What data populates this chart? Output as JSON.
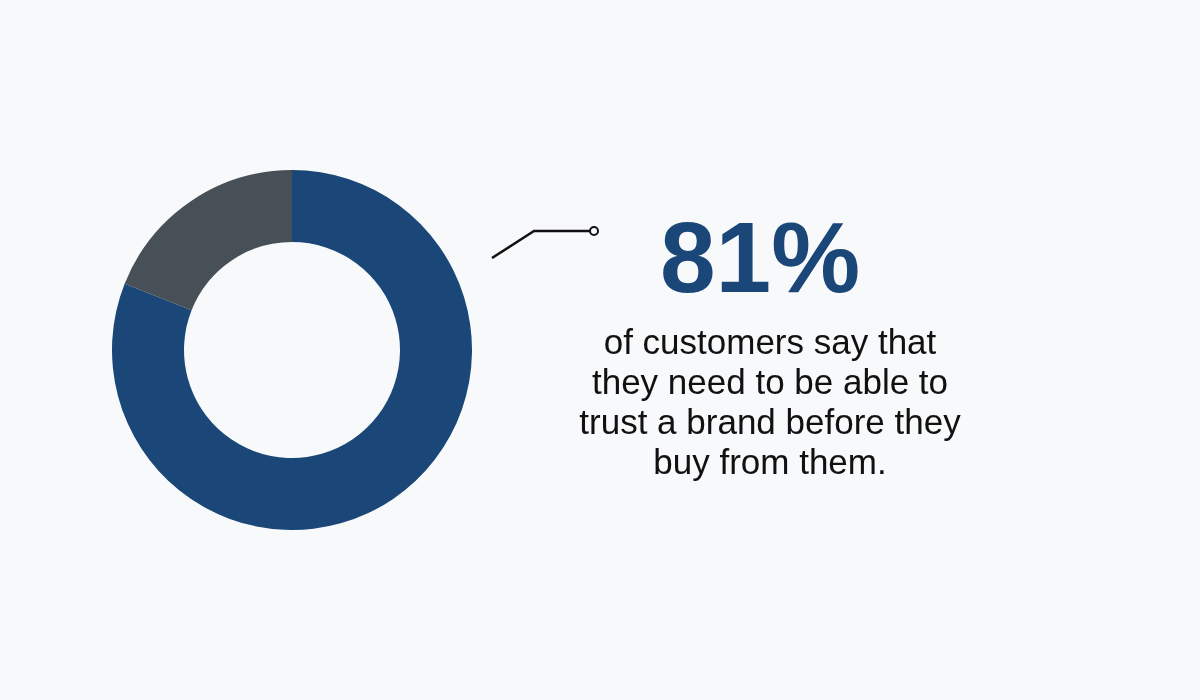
{
  "chart_data": {
    "type": "donut",
    "categories": [
      null,
      null
    ],
    "values": [
      81,
      19
    ],
    "colors": [
      "#1a4778",
      "#474f57"
    ],
    "value_labels": [
      "81%",
      null
    ],
    "annotations": [
      "of customers say that they need to be able to trust a brand before they buy from them."
    ],
    "legend": false
  }
}
